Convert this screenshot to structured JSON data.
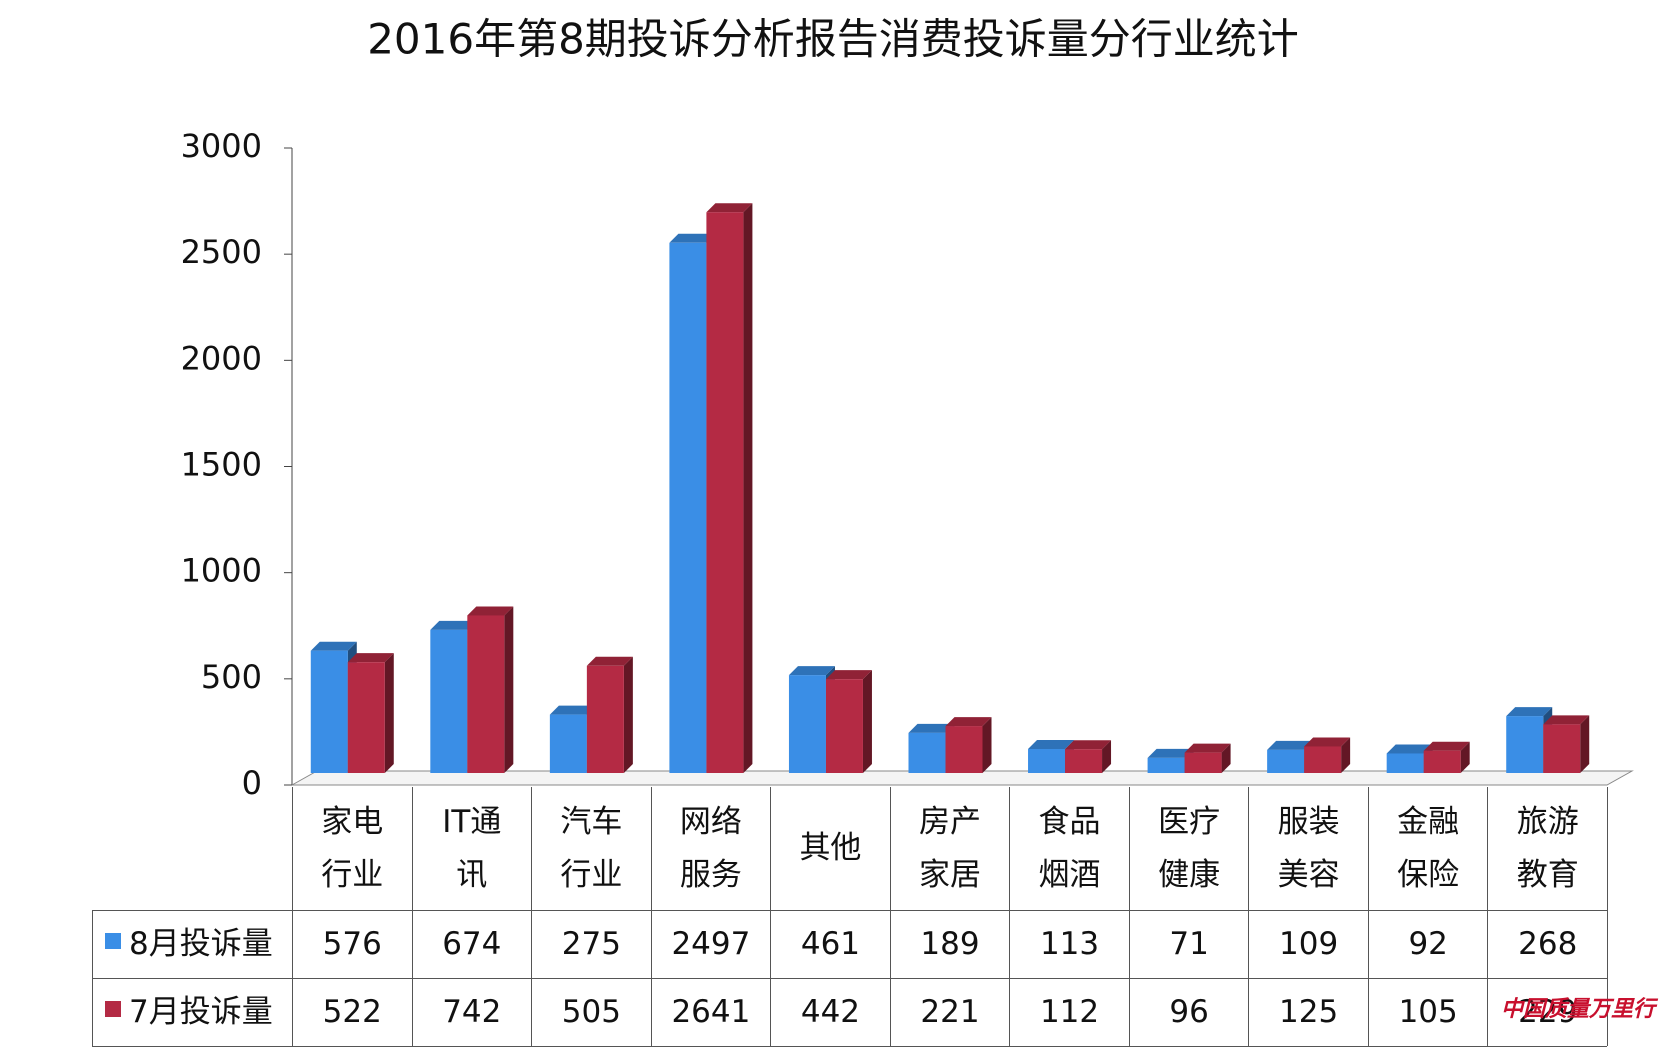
{
  "chart_data": {
    "type": "bar3d",
    "title": "2016年第8期投诉分析报告消费投诉量分行业统计",
    "categories": [
      "家电\n行业",
      "IT通\n讯",
      "汽车\n行业",
      "网络\n服务",
      "其他",
      "房产\n家居",
      "食品\n烟酒",
      "医疗\n健康",
      "服装\n美容",
      "金融\n保险",
      "旅游\n教育"
    ],
    "series": [
      {
        "name": "8月投诉量",
        "color": "#3a8ee6",
        "values": [
          576,
          674,
          275,
          2497,
          461,
          189,
          113,
          71,
          109,
          92,
          268
        ]
      },
      {
        "name": "7月投诉量",
        "color": "#b42a44",
        "values": [
          522,
          742,
          505,
          2641,
          442,
          221,
          112,
          96,
          125,
          105,
          229
        ]
      }
    ],
    "ylim": [
      0,
      3000
    ],
    "yticks": [
      0,
      500,
      1000,
      1500,
      2000,
      2500,
      3000
    ],
    "grid": false,
    "watermark": "中国质量万里行"
  }
}
